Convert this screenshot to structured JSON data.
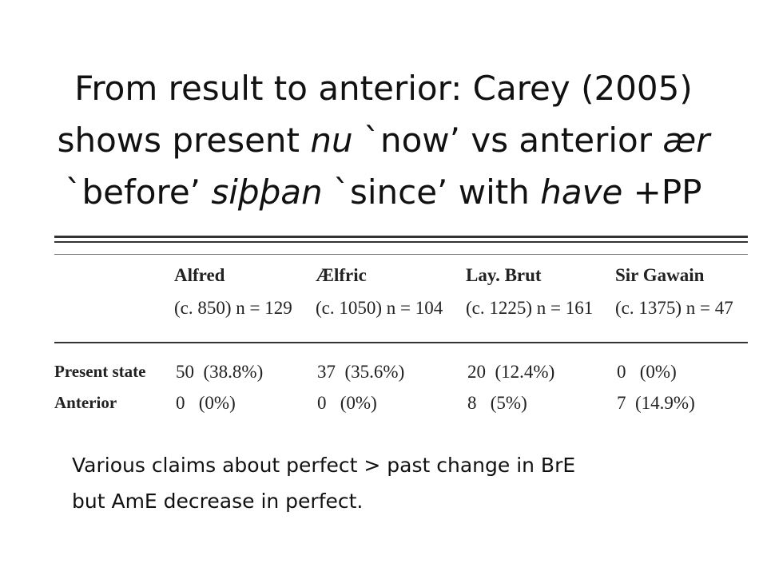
{
  "title": {
    "lines": [
      [
        {
          "text": "From result to anterior: Carey (2005)",
          "italic": false
        }
      ],
      [
        {
          "text": "shows present ",
          "italic": false
        },
        {
          "text": "nu",
          "italic": true
        },
        {
          "text": " `now’ vs anterior ",
          "italic": false
        },
        {
          "text": "ær",
          "italic": true
        }
      ],
      [
        {
          "text": "`before’ ",
          "italic": false
        },
        {
          "text": "siþþan",
          "italic": true
        },
        {
          "text": " `since’ with ",
          "italic": false
        },
        {
          "text": "have",
          "italic": true
        },
        {
          "text": " +PP",
          "italic": false
        }
      ]
    ]
  },
  "table": {
    "columns": [
      {
        "name": "Alfred",
        "detail": "(c. 850) n = 129"
      },
      {
        "name": "Ælfric",
        "detail": "(c. 1050) n = 104"
      },
      {
        "name": "Lay. Brut",
        "detail": "(c. 1225) n = 161"
      },
      {
        "name": "Sir Gawain",
        "detail": "(c. 1375) n = 47"
      }
    ],
    "rows": [
      {
        "label": "Present state",
        "cells": [
          "50  (38.8%)",
          "37  (35.6%)",
          "20  (12.4%)",
          "0   (0%)"
        ]
      },
      {
        "label": "Anterior",
        "cells": [
          "0   (0%)",
          "0   (0%)",
          "8   (5%)",
          "7  (14.9%)"
        ]
      }
    ]
  },
  "note": {
    "lines": [
      "Various claims about perfect > past change in BrE",
      "but AmE decrease in perfect."
    ]
  }
}
